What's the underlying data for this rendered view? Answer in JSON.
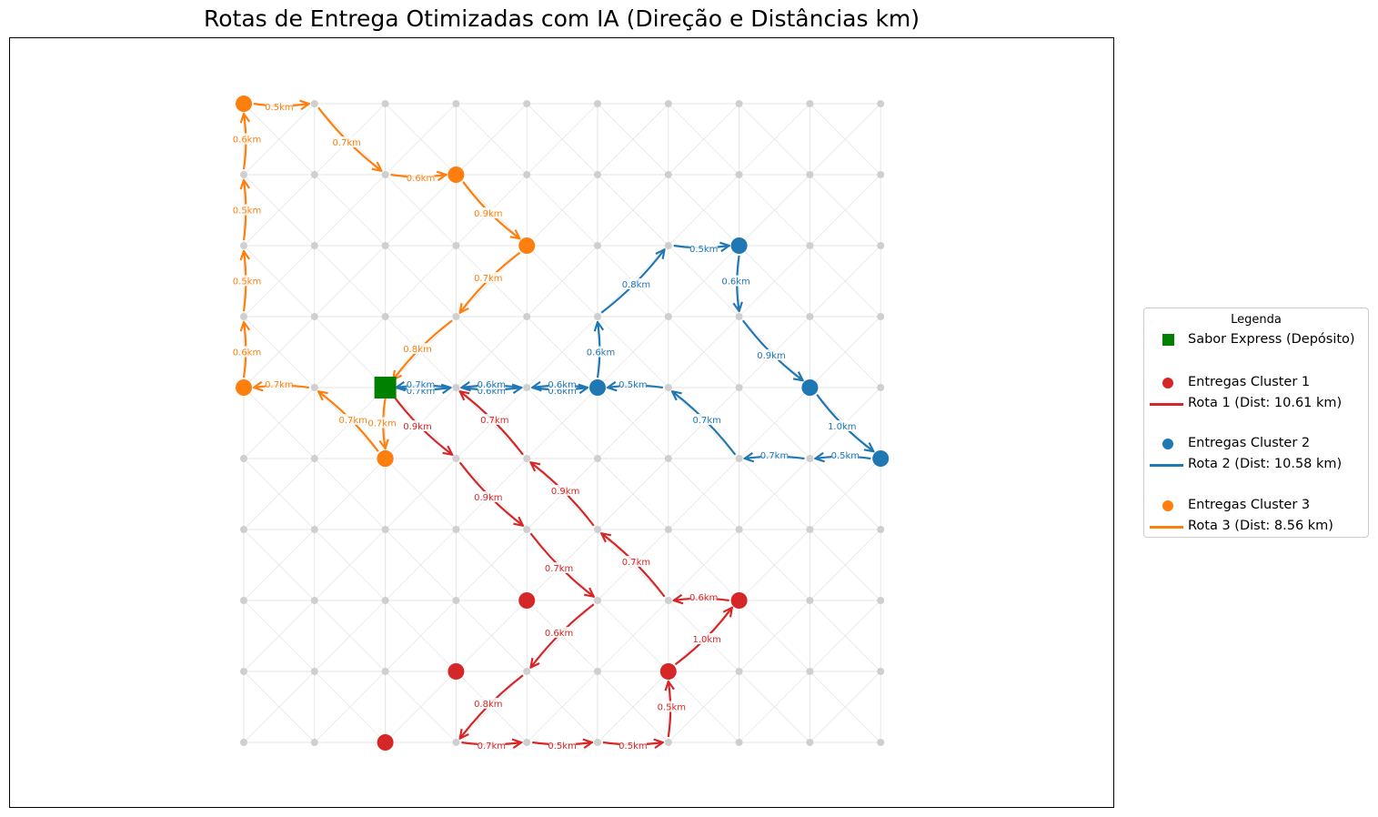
{
  "title": "Rotas de Entrega Otimizadas com IA (Direção e Distâncias km)",
  "grid": {
    "cols": 10,
    "rows": 10
  },
  "colors": {
    "grid_node": "#cfcfcf",
    "grid_line": "#e6e6e6",
    "depot": "#008000",
    "cluster1": "#d62728",
    "cluster2": "#1f77b4",
    "cluster3": "#ff7f0e"
  },
  "depot": {
    "col": 2,
    "row": 4
  },
  "routes": [
    {
      "id": "cluster1",
      "deliveries": [
        [
          2,
          5
        ],
        [
          4,
          7
        ],
        [
          3,
          8
        ],
        [
          2,
          9
        ],
        [
          6,
          8
        ],
        [
          7,
          7
        ]
      ],
      "edges": [
        {
          "from": [
            2,
            4
          ],
          "to": [
            3,
            5
          ],
          "label": "0.9km"
        },
        {
          "from": [
            3,
            5
          ],
          "to": [
            4,
            6
          ],
          "label": "0.9km"
        },
        {
          "from": [
            4,
            6
          ],
          "to": [
            5,
            7
          ],
          "label": "0.7km"
        },
        {
          "from": [
            5,
            7
          ],
          "to": [
            4,
            8
          ],
          "label": "0.6km"
        },
        {
          "from": [
            4,
            8
          ],
          "to": [
            3,
            9
          ],
          "label": "0.8km"
        },
        {
          "from": [
            3,
            9
          ],
          "to": [
            4,
            9
          ],
          "label": "0.7km"
        },
        {
          "from": [
            4,
            9
          ],
          "to": [
            5,
            9
          ],
          "label": "0.5km"
        },
        {
          "from": [
            5,
            9
          ],
          "to": [
            6,
            9
          ],
          "label": "0.5km"
        },
        {
          "from": [
            6,
            9
          ],
          "to": [
            6,
            8
          ],
          "label": "0.5km"
        },
        {
          "from": [
            6,
            8
          ],
          "to": [
            7,
            7
          ],
          "label": "1.0km"
        },
        {
          "from": [
            7,
            7
          ],
          "to": [
            6,
            7
          ],
          "label": "0.6km"
        },
        {
          "from": [
            6,
            7
          ],
          "to": [
            5,
            6
          ],
          "label": "0.7km"
        },
        {
          "from": [
            5,
            6
          ],
          "to": [
            4,
            5
          ],
          "label": "0.9km"
        },
        {
          "from": [
            4,
            5
          ],
          "to": [
            3,
            4
          ],
          "label": "0.7km"
        }
      ]
    },
    {
      "id": "cluster2",
      "deliveries": [
        [
          5,
          4
        ],
        [
          7,
          2
        ],
        [
          8,
          4
        ],
        [
          9,
          5
        ]
      ],
      "edges": [
        {
          "from": [
            2,
            4
          ],
          "to": [
            3,
            4
          ],
          "label": "0.7km"
        },
        {
          "from": [
            3,
            4
          ],
          "to": [
            4,
            4
          ],
          "label": "0.6km"
        },
        {
          "from": [
            4,
            4
          ],
          "to": [
            5,
            4
          ],
          "label": "0.6km"
        },
        {
          "from": [
            5,
            4
          ],
          "to": [
            5,
            3
          ],
          "label": "0.6km"
        },
        {
          "from": [
            5,
            3
          ],
          "to": [
            6,
            2
          ],
          "label": "0.8km"
        },
        {
          "from": [
            6,
            2
          ],
          "to": [
            7,
            2
          ],
          "label": "0.5km"
        },
        {
          "from": [
            7,
            2
          ],
          "to": [
            7,
            3
          ],
          "label": "0.6km"
        },
        {
          "from": [
            7,
            3
          ],
          "to": [
            8,
            4
          ],
          "label": "0.9km"
        },
        {
          "from": [
            8,
            4
          ],
          "to": [
            9,
            5
          ],
          "label": "1.0km"
        },
        {
          "from": [
            9,
            5
          ],
          "to": [
            8,
            5
          ],
          "label": "0.5km"
        },
        {
          "from": [
            8,
            5
          ],
          "to": [
            7,
            5
          ],
          "label": "0.7km"
        },
        {
          "from": [
            7,
            5
          ],
          "to": [
            6,
            4
          ],
          "label": "0.7km"
        },
        {
          "from": [
            6,
            4
          ],
          "to": [
            5,
            4
          ],
          "label": "0.5km"
        },
        {
          "from": [
            5,
            4
          ],
          "to": [
            4,
            4
          ],
          "label": "0.6km"
        },
        {
          "from": [
            4,
            4
          ],
          "to": [
            3,
            4
          ],
          "label": "0.6km"
        },
        {
          "from": [
            3,
            4
          ],
          "to": [
            2,
            4
          ],
          "label": "0.7km"
        }
      ]
    },
    {
      "id": "cluster3",
      "deliveries": [
        [
          2,
          5
        ],
        [
          0,
          4
        ],
        [
          0,
          0
        ],
        [
          3,
          1
        ],
        [
          4,
          2
        ]
      ],
      "edges": [
        {
          "from": [
            2,
            4
          ],
          "to": [
            2,
            5
          ],
          "label": "0.7km"
        },
        {
          "from": [
            2,
            5
          ],
          "to": [
            1,
            4
          ],
          "label": "0.7km"
        },
        {
          "from": [
            1,
            4
          ],
          "to": [
            0,
            4
          ],
          "label": "0.7km"
        },
        {
          "from": [
            0,
            4
          ],
          "to": [
            0,
            3
          ],
          "label": "0.6km"
        },
        {
          "from": [
            0,
            3
          ],
          "to": [
            0,
            2
          ],
          "label": "0.5km"
        },
        {
          "from": [
            0,
            2
          ],
          "to": [
            0,
            1
          ],
          "label": "0.5km"
        },
        {
          "from": [
            0,
            1
          ],
          "to": [
            0,
            0
          ],
          "label": "0.6km"
        },
        {
          "from": [
            0,
            0
          ],
          "to": [
            1,
            0
          ],
          "label": "0.5km"
        },
        {
          "from": [
            1,
            0
          ],
          "to": [
            2,
            1
          ],
          "label": "0.7km"
        },
        {
          "from": [
            2,
            1
          ],
          "to": [
            3,
            1
          ],
          "label": "0.6km"
        },
        {
          "from": [
            3,
            1
          ],
          "to": [
            4,
            2
          ],
          "label": "0.9km"
        },
        {
          "from": [
            4,
            2
          ],
          "to": [
            3,
            3
          ],
          "label": "0.7km"
        },
        {
          "from": [
            3,
            3
          ],
          "to": [
            2,
            4
          ],
          "label": "0.8km"
        }
      ]
    }
  ],
  "legend": {
    "title": "Legenda",
    "items": [
      {
        "symbol": "square",
        "color": "#008000",
        "label": "Sabor Express (Depósito)"
      },
      {
        "symbol": "dot",
        "color": "#d62728",
        "label": "Entregas Cluster 1"
      },
      {
        "symbol": "line",
        "color": "#d62728",
        "label": "Rota 1 (Dist: 10.61 km)"
      },
      {
        "symbol": "dot",
        "color": "#1f77b4",
        "label": "Entregas Cluster 2"
      },
      {
        "symbol": "line",
        "color": "#1f77b4",
        "label": "Rota 2 (Dist: 10.58 km)"
      },
      {
        "symbol": "dot",
        "color": "#ff7f0e",
        "label": "Entregas Cluster 3"
      },
      {
        "symbol": "line",
        "color": "#ff7f0e",
        "label": "Rota 3 (Dist: 8.56 km)"
      }
    ]
  }
}
